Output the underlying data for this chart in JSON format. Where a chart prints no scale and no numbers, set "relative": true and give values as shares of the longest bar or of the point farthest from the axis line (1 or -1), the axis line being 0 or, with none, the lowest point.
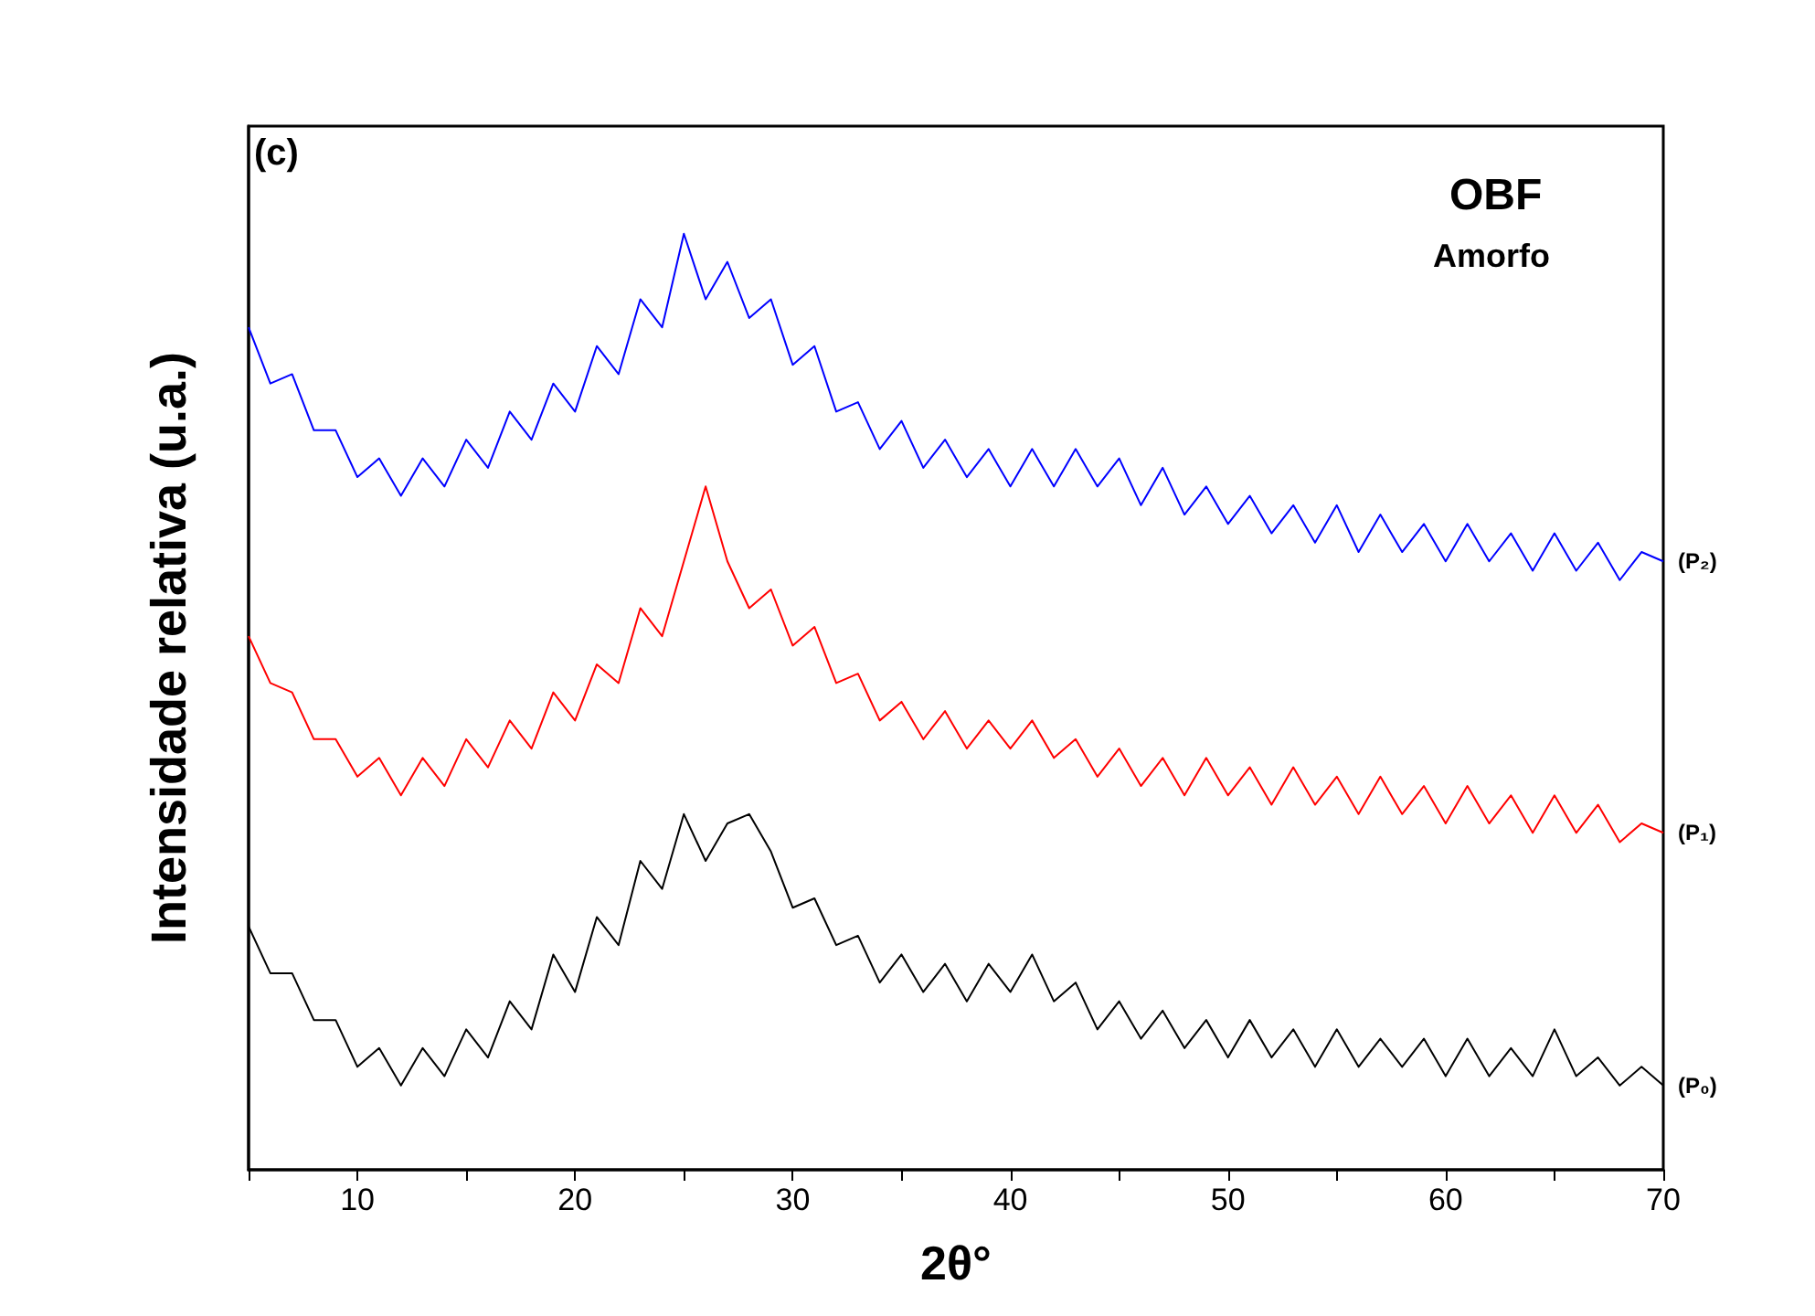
{
  "chart_data": {
    "type": "line",
    "relative": true,
    "xlabel": "2θ°",
    "ylabel": "Intensidade relativa (u.a.)",
    "annotations": [
      "(c)",
      "OBF",
      "Amorfo"
    ],
    "x": [
      5,
      6,
      7,
      8,
      9,
      10,
      11,
      12,
      13,
      14,
      15,
      16,
      17,
      18,
      19,
      20,
      21,
      22,
      23,
      24,
      25,
      26,
      27,
      28,
      29,
      30,
      31,
      32,
      33,
      34,
      35,
      36,
      37,
      38,
      39,
      40,
      41,
      42,
      43,
      44,
      45,
      46,
      47,
      48,
      49,
      50,
      51,
      52,
      53,
      54,
      55,
      56,
      57,
      58,
      59,
      60,
      61,
      62,
      63,
      64,
      65,
      66,
      67,
      68,
      69,
      70
    ],
    "xlim": [
      5,
      70
    ],
    "xticks": [
      {
        "value": 5,
        "label": null
      },
      10,
      {
        "value": 15,
        "label": null
      },
      20,
      {
        "value": 25,
        "label": null
      },
      30,
      {
        "value": 35,
        "label": null
      },
      40,
      {
        "value": 45,
        "label": null
      },
      50,
      {
        "value": 55,
        "label": null
      },
      60,
      {
        "value": 65,
        "label": null
      },
      70
    ],
    "grid": false,
    "legend": false,
    "marker": "none",
    "line_style": "solid",
    "series": [
      {
        "name": "(P₀)",
        "color": "#000000",
        "values": [
          0.26,
          0.21,
          0.21,
          0.16,
          0.16,
          0.11,
          0.13,
          0.09,
          0.13,
          0.1,
          0.15,
          0.12,
          0.18,
          0.15,
          0.23,
          0.19,
          0.27,
          0.24,
          0.33,
          0.3,
          0.38,
          0.33,
          0.37,
          0.38,
          0.34,
          0.28,
          0.29,
          0.24,
          0.25,
          0.2,
          0.23,
          0.19,
          0.22,
          0.18,
          0.22,
          0.19,
          0.23,
          0.18,
          0.2,
          0.15,
          0.18,
          0.14,
          0.17,
          0.13,
          0.16,
          0.12,
          0.16,
          0.12,
          0.15,
          0.11,
          0.15,
          0.11,
          0.14,
          0.11,
          0.14,
          0.1,
          0.14,
          0.1,
          0.13,
          0.1,
          0.15,
          0.1,
          0.12,
          0.09,
          0.11,
          0.09
        ]
      },
      {
        "name": "(P₁)",
        "color": "#ff0000",
        "values": [
          0.57,
          0.52,
          0.51,
          0.46,
          0.46,
          0.42,
          0.44,
          0.4,
          0.44,
          0.41,
          0.46,
          0.43,
          0.48,
          0.45,
          0.51,
          0.48,
          0.54,
          0.52,
          0.6,
          0.57,
          0.65,
          0.73,
          0.65,
          0.6,
          0.62,
          0.56,
          0.58,
          0.52,
          0.53,
          0.48,
          0.5,
          0.46,
          0.49,
          0.45,
          0.48,
          0.45,
          0.48,
          0.44,
          0.46,
          0.42,
          0.45,
          0.41,
          0.44,
          0.4,
          0.44,
          0.4,
          0.43,
          0.39,
          0.43,
          0.39,
          0.42,
          0.38,
          0.42,
          0.38,
          0.41,
          0.37,
          0.41,
          0.37,
          0.4,
          0.36,
          0.4,
          0.36,
          0.39,
          0.35,
          0.37,
          0.36
        ]
      },
      {
        "name": "(P₂)",
        "color": "#0000ff",
        "values": [
          0.9,
          0.84,
          0.85,
          0.79,
          0.79,
          0.74,
          0.76,
          0.72,
          0.76,
          0.73,
          0.78,
          0.75,
          0.81,
          0.78,
          0.84,
          0.81,
          0.88,
          0.85,
          0.93,
          0.9,
          1.0,
          0.93,
          0.97,
          0.91,
          0.93,
          0.86,
          0.88,
          0.81,
          0.82,
          0.77,
          0.8,
          0.75,
          0.78,
          0.74,
          0.77,
          0.73,
          0.77,
          0.73,
          0.77,
          0.73,
          0.76,
          0.71,
          0.75,
          0.7,
          0.73,
          0.69,
          0.72,
          0.68,
          0.71,
          0.67,
          0.71,
          0.66,
          0.7,
          0.66,
          0.69,
          0.65,
          0.69,
          0.65,
          0.68,
          0.64,
          0.68,
          0.64,
          0.67,
          0.63,
          0.66,
          0.65
        ]
      }
    ]
  }
}
